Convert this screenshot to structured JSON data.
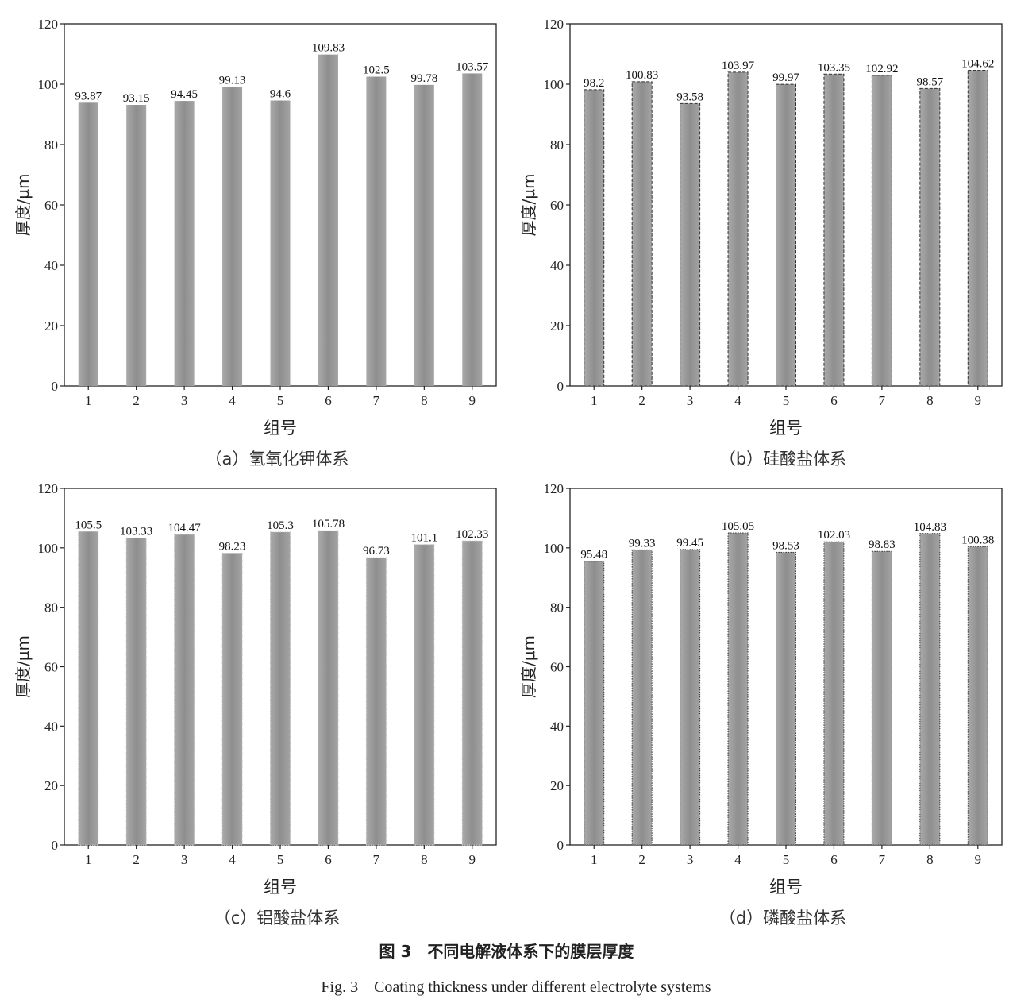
{
  "figure": {
    "title": "图 3　不同电解液体系下的膜层厚度",
    "subtitle": "Fig. 3　Coating thickness under different electrolyte systems"
  },
  "chart_data": [
    {
      "type": "bar",
      "panel": "a",
      "caption": "（a）氢氧化钾体系",
      "xlabel": "组号",
      "ylabel": "厚度/μm",
      "ylim": [
        0,
        120
      ],
      "yticks": [
        0,
        20,
        40,
        60,
        80,
        100,
        120
      ],
      "categories": [
        "1",
        "2",
        "3",
        "4",
        "5",
        "6",
        "7",
        "8",
        "9"
      ],
      "values": [
        93.87,
        93.15,
        94.45,
        99.13,
        94.6,
        109.83,
        102.5,
        99.78,
        103.57
      ],
      "labels": [
        "93.87",
        "93.15",
        "94.45",
        "99.13",
        "94.6",
        "109.83",
        "102.5",
        "99.78",
        "103.57"
      ],
      "bar_border": "none",
      "grid": false
    },
    {
      "type": "bar",
      "panel": "b",
      "caption": "（b）硅酸盐体系",
      "xlabel": "组号",
      "ylabel": "厚度/μm",
      "ylim": [
        0,
        120
      ],
      "yticks": [
        0,
        20,
        40,
        60,
        80,
        100,
        120
      ],
      "categories": [
        "1",
        "2",
        "3",
        "4",
        "5",
        "6",
        "7",
        "8",
        "9"
      ],
      "values": [
        98.2,
        100.83,
        93.58,
        103.97,
        99.97,
        103.35,
        102.92,
        98.57,
        104.62
      ],
      "labels": [
        "98.2",
        "100.83",
        "93.58",
        "103.97",
        "99.97",
        "103.35",
        "102.92",
        "98.57",
        "104.62"
      ],
      "bar_border": "dashed",
      "grid": false
    },
    {
      "type": "bar",
      "panel": "c",
      "caption": "（c）铝酸盐体系",
      "xlabel": "组号",
      "ylabel": "厚度/μm",
      "ylim": [
        0,
        120
      ],
      "yticks": [
        0,
        20,
        40,
        60,
        80,
        100,
        120
      ],
      "categories": [
        "1",
        "2",
        "3",
        "4",
        "5",
        "6",
        "7",
        "8",
        "9"
      ],
      "values": [
        105.5,
        103.33,
        104.47,
        98.23,
        105.3,
        105.78,
        96.73,
        101.1,
        102.33
      ],
      "labels": [
        "105.5",
        "103.33",
        "104.47",
        "98.23",
        "105.3",
        "105.78",
        "96.73",
        "101.1",
        "102.33"
      ],
      "bar_border": "dotted",
      "grid": false
    },
    {
      "type": "bar",
      "panel": "d",
      "caption": "（d）磷酸盐体系",
      "xlabel": "组号",
      "ylabel": "厚度/μm",
      "ylim": [
        0,
        120
      ],
      "yticks": [
        0,
        20,
        40,
        60,
        80,
        100,
        120
      ],
      "categories": [
        "1",
        "2",
        "3",
        "4",
        "5",
        "6",
        "7",
        "8",
        "9"
      ],
      "values": [
        95.48,
        99.33,
        99.45,
        105.05,
        98.53,
        102.03,
        98.83,
        104.83,
        100.38
      ],
      "labels": [
        "95.48",
        "99.33",
        "99.45",
        "105.05",
        "98.53",
        "102.03",
        "98.83",
        "104.83",
        "100.38"
      ],
      "bar_border": "dotted-dark",
      "grid": false
    }
  ]
}
